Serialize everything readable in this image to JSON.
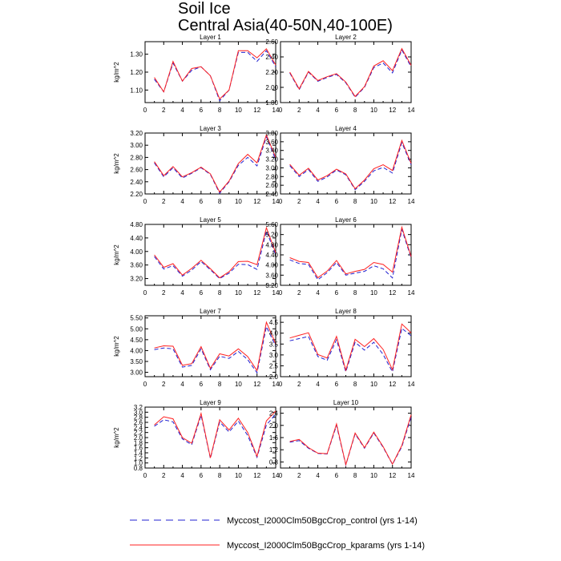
{
  "figure": {
    "title": "Soil Ice",
    "subtitle": "Central Asia(40-50N,40-100E)"
  },
  "colors": {
    "control": "#2020d0",
    "kparams": "#ff2020"
  },
  "legend": {
    "control_label": "Myccost_I2000Clm50BgcCrop_control (yrs 1-14)",
    "kparams_label": "Myccost_I2000Clm50BgcCrop_kparams (yrs 1-14)"
  },
  "chart_data": [
    {
      "type": "line",
      "title": "Layer 1",
      "ylabel": "kg/m^2",
      "x": [
        1,
        2,
        3,
        4,
        5,
        6,
        7,
        8,
        9,
        10,
        11,
        12,
        13,
        14
      ],
      "xlim": [
        0,
        14
      ],
      "xticks": [
        0,
        2,
        4,
        6,
        8,
        10,
        12,
        14
      ],
      "ylim": [
        1.03,
        1.37
      ],
      "yticks": [
        "1.10",
        "1.20",
        "1.30"
      ],
      "series": [
        {
          "name": "Myccost_I2000Clm50BgcCrop_control (yrs 1-14)",
          "values": [
            1.16,
            1.09,
            1.25,
            1.15,
            1.21,
            1.23,
            1.18,
            1.04,
            1.1,
            1.31,
            1.31,
            1.26,
            1.32,
            1.23
          ]
        },
        {
          "name": "Myccost_I2000Clm50BgcCrop_kparams (yrs 1-14)",
          "values": [
            1.17,
            1.09,
            1.26,
            1.15,
            1.22,
            1.23,
            1.18,
            1.05,
            1.1,
            1.32,
            1.32,
            1.28,
            1.33,
            1.24
          ]
        }
      ]
    },
    {
      "type": "line",
      "title": "Layer 2",
      "ylabel": "",
      "x": [
        1,
        2,
        3,
        4,
        5,
        6,
        7,
        8,
        9,
        10,
        11,
        12,
        13,
        14
      ],
      "xlim": [
        0,
        14
      ],
      "xticks": [
        0,
        2,
        4,
        6,
        8,
        10,
        12,
        14
      ],
      "ylim": [
        1.8,
        2.6
      ],
      "yticks": [
        "1.80",
        "2.00",
        "2.20",
        "2.40",
        "2.60"
      ],
      "series": [
        {
          "name": "Myccost_I2000Clm50BgcCrop_control (yrs 1-14)",
          "values": [
            2.19,
            1.97,
            2.2,
            2.08,
            2.13,
            2.17,
            2.06,
            1.87,
            2.0,
            2.26,
            2.32,
            2.19,
            2.49,
            2.27
          ]
        },
        {
          "name": "Myccost_I2000Clm50BgcCrop_kparams (yrs 1-14)",
          "values": [
            2.2,
            1.98,
            2.21,
            2.09,
            2.14,
            2.18,
            2.07,
            1.88,
            2.01,
            2.28,
            2.35,
            2.22,
            2.51,
            2.29
          ]
        }
      ]
    },
    {
      "type": "line",
      "title": "Layer 3",
      "ylabel": "kg/m^2",
      "x": [
        1,
        2,
        3,
        4,
        5,
        6,
        7,
        8,
        9,
        10,
        11,
        12,
        13,
        14
      ],
      "xlim": [
        0,
        14
      ],
      "xticks": [
        0,
        2,
        4,
        6,
        8,
        10,
        12,
        14
      ],
      "ylim": [
        2.2,
        3.2
      ],
      "yticks": [
        "2.20",
        "2.40",
        "2.60",
        "2.80",
        "3.00",
        "3.20"
      ],
      "series": [
        {
          "name": "Myccost_I2000Clm50BgcCrop_control (yrs 1-14)",
          "values": [
            2.71,
            2.48,
            2.63,
            2.46,
            2.54,
            2.63,
            2.52,
            2.21,
            2.4,
            2.67,
            2.8,
            2.66,
            3.14,
            2.76
          ]
        },
        {
          "name": "Myccost_I2000Clm50BgcCrop_kparams (yrs 1-14)",
          "values": [
            2.73,
            2.5,
            2.65,
            2.48,
            2.55,
            2.64,
            2.53,
            2.23,
            2.41,
            2.7,
            2.85,
            2.71,
            3.17,
            2.8
          ]
        }
      ]
    },
    {
      "type": "line",
      "title": "Layer 4",
      "ylabel": "",
      "x": [
        1,
        2,
        3,
        4,
        5,
        6,
        7,
        8,
        9,
        10,
        11,
        12,
        13,
        14
      ],
      "xlim": [
        0,
        14
      ],
      "xticks": [
        0,
        2,
        4,
        6,
        8,
        10,
        12,
        14
      ],
      "ylim": [
        2.4,
        3.8
      ],
      "yticks": [
        "2.40",
        "2.60",
        "2.80",
        "3.00",
        "3.20",
        "3.40",
        "3.60",
        "3.80"
      ],
      "series": [
        {
          "name": "Myccost_I2000Clm50BgcCrop_control (yrs 1-14)",
          "values": [
            3.05,
            2.8,
            2.96,
            2.69,
            2.79,
            2.95,
            2.84,
            2.5,
            2.69,
            2.93,
            3.01,
            2.88,
            3.58,
            3.07
          ]
        },
        {
          "name": "Myccost_I2000Clm50BgcCrop_kparams (yrs 1-14)",
          "values": [
            3.08,
            2.83,
            2.99,
            2.72,
            2.82,
            2.97,
            2.86,
            2.52,
            2.72,
            2.98,
            3.07,
            2.94,
            3.63,
            3.1
          ]
        }
      ]
    },
    {
      "type": "line",
      "title": "Layer 5",
      "ylabel": "kg/m^2",
      "x": [
        1,
        2,
        3,
        4,
        5,
        6,
        7,
        8,
        9,
        10,
        11,
        12,
        13,
        14
      ],
      "xlim": [
        0,
        14
      ],
      "xticks": [
        0,
        2,
        4,
        6,
        8,
        10,
        12,
        14
      ],
      "ylim": [
        3.0,
        4.8
      ],
      "yticks": [
        "3.20",
        "3.60",
        "4.00",
        "4.40",
        "4.80"
      ],
      "series": [
        {
          "name": "Myccost_I2000Clm50BgcCrop_control (yrs 1-14)",
          "values": [
            3.85,
            3.48,
            3.58,
            3.27,
            3.45,
            3.7,
            3.46,
            3.2,
            3.36,
            3.62,
            3.61,
            3.47,
            4.61,
            3.9
          ]
        },
        {
          "name": "Myccost_I2000Clm50BgcCrop_kparams (yrs 1-14)",
          "values": [
            3.9,
            3.53,
            3.64,
            3.3,
            3.5,
            3.74,
            3.49,
            3.22,
            3.4,
            3.7,
            3.71,
            3.61,
            4.7,
            3.96
          ]
        }
      ]
    },
    {
      "type": "line",
      "title": "Layer 6",
      "ylabel": "",
      "x": [
        1,
        2,
        3,
        4,
        5,
        6,
        7,
        8,
        9,
        10,
        11,
        12,
        13,
        14
      ],
      "xlim": [
        0,
        14
      ],
      "xticks": [
        0,
        2,
        4,
        6,
        8,
        10,
        12,
        14
      ],
      "ylim": [
        3.2,
        5.6
      ],
      "yticks": [
        "3.20",
        "3.60",
        "4.00",
        "4.40",
        "4.80",
        "5.20",
        "5.60"
      ],
      "series": [
        {
          "name": "Myccost_I2000Clm50BgcCrop_control (yrs 1-14)",
          "values": [
            4.2,
            4.06,
            4.02,
            3.42,
            3.7,
            4.1,
            3.6,
            3.68,
            3.75,
            3.97,
            3.85,
            3.49,
            5.4,
            4.28
          ]
        },
        {
          "name": "Myccost_I2000Clm50BgcCrop_kparams (yrs 1-14)",
          "values": [
            4.29,
            4.14,
            4.1,
            3.5,
            3.76,
            4.18,
            3.65,
            3.75,
            3.83,
            4.1,
            4.02,
            3.72,
            5.49,
            4.33
          ]
        }
      ]
    },
    {
      "type": "line",
      "title": "Layer 7",
      "ylabel": "kg/m^2",
      "x": [
        1,
        2,
        3,
        4,
        5,
        6,
        7,
        8,
        9,
        10,
        11,
        12,
        13,
        14
      ],
      "xlim": [
        0,
        14
      ],
      "xticks": [
        0,
        2,
        4,
        6,
        8,
        10,
        12,
        14
      ],
      "ylim": [
        2.8,
        5.6
      ],
      "yticks": [
        "3.00",
        "3.50",
        "4.00",
        "4.50",
        "5.00",
        "5.50"
      ],
      "series": [
        {
          "name": "Myccost_I2000Clm50BgcCrop_control (yrs 1-14)",
          "values": [
            4.04,
            4.12,
            4.08,
            3.24,
            3.32,
            4.08,
            3.12,
            3.74,
            3.64,
            3.96,
            3.58,
            2.98,
            5.1,
            4.2
          ]
        },
        {
          "name": "Myccost_I2000Clm50BgcCrop_kparams (yrs 1-14)",
          "values": [
            4.12,
            4.22,
            4.2,
            3.32,
            3.4,
            4.18,
            3.18,
            3.85,
            3.75,
            4.08,
            3.72,
            3.08,
            5.3,
            4.31
          ]
        }
      ]
    },
    {
      "type": "line",
      "title": "Layer 8",
      "ylabel": "",
      "x": [
        1,
        2,
        3,
        4,
        5,
        6,
        7,
        8,
        9,
        10,
        11,
        12,
        13,
        14
      ],
      "xlim": [
        0,
        14
      ],
      "xticks": [
        0,
        2,
        4,
        6,
        8,
        10,
        12,
        14
      ],
      "ylim": [
        2.0,
        4.8
      ],
      "yticks": [
        "2.0",
        "2.5",
        "3.0",
        "3.5",
        "4.0",
        "4.5"
      ],
      "series": [
        {
          "name": "Myccost_I2000Clm50BgcCrop_control (yrs 1-14)",
          "values": [
            3.65,
            3.75,
            3.85,
            2.93,
            2.75,
            3.7,
            2.22,
            3.58,
            3.22,
            3.58,
            3.02,
            2.22,
            4.22,
            3.88
          ]
        },
        {
          "name": "Myccost_I2000Clm50BgcCrop_kparams (yrs 1-14)",
          "values": [
            3.78,
            3.9,
            4.02,
            3.02,
            2.86,
            3.85,
            2.3,
            3.72,
            3.38,
            3.75,
            3.25,
            2.32,
            4.42,
            4.02
          ]
        }
      ]
    },
    {
      "type": "line",
      "title": "Layer 9",
      "ylabel": "kg/m^2",
      "x": [
        1,
        2,
        3,
        4,
        5,
        6,
        7,
        8,
        9,
        10,
        11,
        12,
        13,
        14
      ],
      "xlim": [
        0,
        14
      ],
      "xticks": [
        0,
        2,
        4,
        6,
        8,
        10,
        12,
        14
      ],
      "ylim": [
        0.8,
        3.2
      ],
      "yticks": [
        "0.8",
        "1.0",
        "1.2",
        "1.4",
        "1.6",
        "1.8",
        "2.0",
        "2.2",
        "2.4",
        "2.6",
        "2.8",
        "3.0",
        "3.2"
      ],
      "series": [
        {
          "name": "Myccost_I2000Clm50BgcCrop_control (yrs 1-14)",
          "values": [
            2.45,
            2.7,
            2.62,
            1.95,
            1.72,
            2.88,
            1.18,
            2.62,
            2.22,
            2.65,
            2.08,
            1.22,
            2.5,
            2.92
          ]
        },
        {
          "name": "Myccost_I2000Clm50BgcCrop_kparams (yrs 1-14)",
          "values": [
            2.5,
            2.82,
            2.74,
            2.0,
            1.78,
            2.95,
            1.2,
            2.7,
            2.3,
            2.76,
            2.2,
            1.26,
            2.66,
            3.05
          ]
        }
      ]
    },
    {
      "type": "line",
      "title": "Layer 10",
      "ylabel": "",
      "x": [
        1,
        2,
        3,
        4,
        5,
        6,
        7,
        8,
        9,
        10,
        11,
        12,
        13,
        14
      ],
      "xlim": [
        0,
        14
      ],
      "xticks": [
        0,
        2,
        4,
        6,
        8,
        10,
        12,
        14
      ],
      "ylim": [
        0.6,
        2.6
      ],
      "yticks": [
        "0.8",
        "1.2",
        "1.6",
        "2.0",
        "2.4"
      ],
      "series": [
        {
          "name": "Myccost_I2000Clm50BgcCrop_control (yrs 1-14)",
          "values": [
            1.45,
            1.5,
            1.25,
            1.08,
            1.06,
            2.0,
            0.7,
            1.72,
            1.25,
            1.75,
            1.28,
            0.72,
            1.3,
            2.28
          ]
        },
        {
          "name": "Myccost_I2000Clm50BgcCrop_kparams (yrs 1-14)",
          "values": [
            1.47,
            1.54,
            1.27,
            1.09,
            1.07,
            2.05,
            0.71,
            1.75,
            1.27,
            1.78,
            1.3,
            0.73,
            1.34,
            2.35
          ]
        }
      ]
    }
  ]
}
